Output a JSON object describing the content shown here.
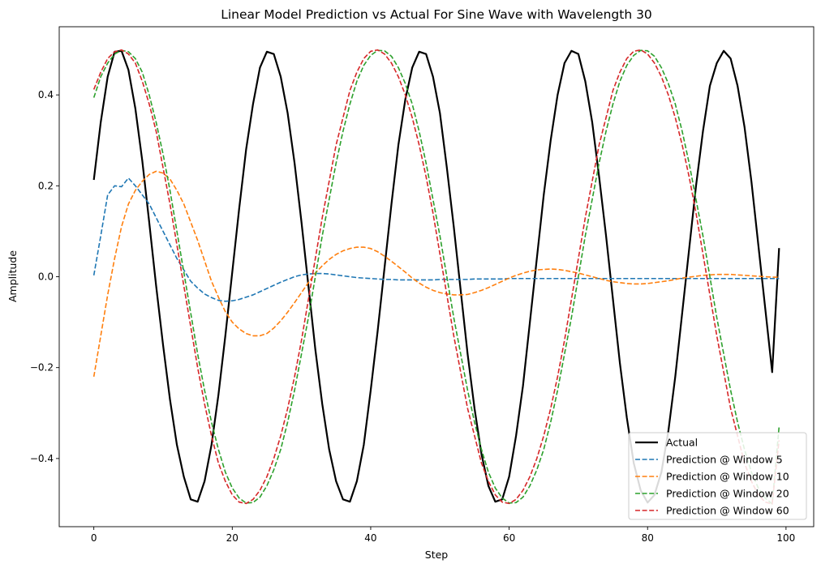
{
  "chart_data": {
    "type": "line",
    "title": "Linear Model Prediction vs Actual For Sine Wave with Wavelength 30",
    "xlabel": "Step",
    "ylabel": "Amplitude",
    "xlim": [
      -5,
      104
    ],
    "ylim": [
      -0.55,
      0.55
    ],
    "xticks": [
      0,
      20,
      40,
      60,
      80,
      100
    ],
    "yticks": [
      -0.4,
      -0.2,
      0.0,
      0.2,
      0.4
    ],
    "xtick_labels": [
      "0",
      "20",
      "40",
      "60",
      "80",
      "100"
    ],
    "ytick_labels": [
      "−0.4",
      "−0.2",
      "0.0",
      "0.2",
      "0.4"
    ],
    "grid": false,
    "legend_position": "lower-right",
    "x": [
      0,
      1,
      2,
      3,
      4,
      5,
      6,
      7,
      8,
      9,
      10,
      11,
      12,
      13,
      14,
      15,
      16,
      17,
      18,
      19,
      20,
      21,
      22,
      23,
      24,
      25,
      26,
      27,
      28,
      29,
      30,
      31,
      32,
      33,
      34,
      35,
      36,
      37,
      38,
      39,
      40,
      41,
      42,
      43,
      44,
      45,
      46,
      47,
      48,
      49,
      50,
      51,
      52,
      53,
      54,
      55,
      56,
      57,
      58,
      59,
      60,
      61,
      62,
      63,
      64,
      65,
      66,
      67,
      68,
      69,
      70,
      71,
      72,
      73,
      74,
      75,
      76,
      77,
      78,
      79,
      80,
      81,
      82,
      83,
      84,
      85,
      86,
      87,
      88,
      89,
      90,
      91,
      92,
      93,
      94,
      95,
      96,
      97,
      98,
      99
    ],
    "series": [
      {
        "name": "Actual",
        "color": "#000000",
        "style": "solid",
        "values": [
          0.213,
          0.34,
          0.44,
          0.495,
          0.497,
          0.455,
          0.37,
          0.255,
          0.12,
          -0.02,
          -0.15,
          -0.27,
          -0.37,
          -0.44,
          -0.49,
          -0.495,
          -0.45,
          -0.37,
          -0.26,
          -0.13,
          0.01,
          0.15,
          0.28,
          0.38,
          0.46,
          0.495,
          0.49,
          0.44,
          0.36,
          0.25,
          0.12,
          -0.02,
          -0.16,
          -0.28,
          -0.38,
          -0.45,
          -0.49,
          -0.495,
          -0.45,
          -0.37,
          -0.25,
          -0.12,
          0.02,
          0.16,
          0.29,
          0.39,
          0.46,
          0.495,
          0.49,
          0.44,
          0.36,
          0.24,
          0.11,
          -0.03,
          -0.17,
          -0.29,
          -0.39,
          -0.46,
          -0.495,
          -0.49,
          -0.44,
          -0.35,
          -0.24,
          -0.1,
          0.04,
          0.18,
          0.3,
          0.4,
          0.47,
          0.497,
          0.49,
          0.43,
          0.34,
          0.22,
          0.09,
          -0.05,
          -0.19,
          -0.31,
          -0.41,
          -0.47,
          -0.497,
          -0.48,
          -0.43,
          -0.34,
          -0.22,
          -0.08,
          0.06,
          0.2,
          0.32,
          0.42,
          0.47,
          0.497,
          0.48,
          0.42,
          0.33,
          0.21,
          0.07,
          -0.07,
          -0.21,
          0.063
        ]
      },
      {
        "name": "Prediction @ Window 5",
        "color": "#1f77b4",
        "style": "dashed",
        "values": [
          0.003,
          0.09,
          0.18,
          0.2,
          0.198,
          0.217,
          0.2,
          0.18,
          0.16,
          0.13,
          0.1,
          0.07,
          0.04,
          0.015,
          -0.01,
          -0.025,
          -0.038,
          -0.046,
          -0.052,
          -0.054,
          -0.053,
          -0.05,
          -0.045,
          -0.04,
          -0.033,
          -0.026,
          -0.019,
          -0.012,
          -0.006,
          0.0,
          0.004,
          0.006,
          0.007,
          0.007,
          0.006,
          0.004,
          0.002,
          0.0,
          -0.002,
          -0.003,
          -0.004,
          -0.005,
          -0.006,
          -0.006,
          -0.007,
          -0.007,
          -0.007,
          -0.007,
          -0.007,
          -0.007,
          -0.006,
          -0.006,
          -0.006,
          -0.006,
          -0.006,
          -0.005,
          -0.005,
          -0.005,
          -0.005,
          -0.005,
          -0.004,
          -0.004,
          -0.004,
          -0.004,
          -0.004,
          -0.004,
          -0.004,
          -0.004,
          -0.004,
          -0.004,
          -0.004,
          -0.004,
          -0.004,
          -0.004,
          -0.004,
          -0.004,
          -0.004,
          -0.004,
          -0.004,
          -0.004,
          -0.004,
          -0.004,
          -0.004,
          -0.004,
          -0.004,
          -0.004,
          -0.004,
          -0.004,
          -0.004,
          -0.004,
          -0.004,
          -0.004,
          -0.004,
          -0.004,
          -0.004,
          -0.004,
          -0.004,
          -0.004,
          -0.004,
          -0.004
        ]
      },
      {
        "name": "Prediction @ Window 10",
        "color": "#ff7f0e",
        "style": "dashed",
        "values": [
          -0.22,
          -0.13,
          -0.04,
          0.04,
          0.11,
          0.16,
          0.19,
          0.21,
          0.225,
          0.232,
          0.228,
          0.215,
          0.19,
          0.16,
          0.12,
          0.08,
          0.035,
          -0.01,
          -0.045,
          -0.077,
          -0.1,
          -0.115,
          -0.125,
          -0.13,
          -0.13,
          -0.125,
          -0.113,
          -0.097,
          -0.078,
          -0.057,
          -0.035,
          -0.013,
          0.008,
          0.024,
          0.038,
          0.049,
          0.057,
          0.062,
          0.065,
          0.065,
          0.062,
          0.055,
          0.045,
          0.034,
          0.022,
          0.01,
          -0.003,
          -0.014,
          -0.023,
          -0.03,
          -0.035,
          -0.038,
          -0.04,
          -0.04,
          -0.039,
          -0.035,
          -0.03,
          -0.024,
          -0.017,
          -0.01,
          -0.003,
          0.003,
          0.008,
          0.012,
          0.015,
          0.016,
          0.017,
          0.016,
          0.014,
          0.011,
          0.008,
          0.004,
          0.0,
          -0.004,
          -0.008,
          -0.011,
          -0.013,
          -0.015,
          -0.016,
          -0.016,
          -0.015,
          -0.013,
          -0.011,
          -0.009,
          -0.006,
          -0.003,
          -0.001,
          0.001,
          0.003,
          0.004,
          0.005,
          0.005,
          0.005,
          0.004,
          0.003,
          0.002,
          0.001,
          0.0,
          -0.001,
          -0.001
        ]
      },
      {
        "name": "Prediction @ Window 20",
        "color": "#2ca02c",
        "style": "dashed",
        "values": [
          0.394,
          0.44,
          0.47,
          0.49,
          0.498,
          0.495,
          0.48,
          0.45,
          0.4,
          0.34,
          0.27,
          0.19,
          0.1,
          0.01,
          -0.08,
          -0.17,
          -0.25,
          -0.32,
          -0.38,
          -0.43,
          -0.465,
          -0.487,
          -0.498,
          -0.497,
          -0.485,
          -0.46,
          -0.425,
          -0.38,
          -0.32,
          -0.25,
          -0.17,
          -0.09,
          0.0,
          0.09,
          0.17,
          0.25,
          0.32,
          0.38,
          0.43,
          0.465,
          0.487,
          0.498,
          0.497,
          0.485,
          0.46,
          0.425,
          0.38,
          0.32,
          0.25,
          0.17,
          0.09,
          0.0,
          -0.09,
          -0.17,
          -0.25,
          -0.32,
          -0.38,
          -0.43,
          -0.465,
          -0.487,
          -0.498,
          -0.497,
          -0.485,
          -0.46,
          -0.425,
          -0.38,
          -0.32,
          -0.25,
          -0.17,
          -0.09,
          0.0,
          0.09,
          0.17,
          0.25,
          0.32,
          0.38,
          0.43,
          0.465,
          0.487,
          0.498,
          0.497,
          0.485,
          0.46,
          0.425,
          0.38,
          0.32,
          0.25,
          0.17,
          0.09,
          0.0,
          -0.09,
          -0.17,
          -0.25,
          -0.32,
          -0.38,
          -0.43,
          -0.465,
          -0.487,
          -0.5,
          -0.33
        ]
      },
      {
        "name": "Prediction @ Window 60",
        "color": "#d62728",
        "style": "dashed",
        "values": [
          0.412,
          0.45,
          0.48,
          0.495,
          0.499,
          0.49,
          0.47,
          0.43,
          0.38,
          0.32,
          0.24,
          0.16,
          0.07,
          -0.02,
          -0.11,
          -0.2,
          -0.28,
          -0.35,
          -0.41,
          -0.45,
          -0.48,
          -0.496,
          -0.499,
          -0.49,
          -0.47,
          -0.44,
          -0.4,
          -0.35,
          -0.29,
          -0.22,
          -0.14,
          -0.05,
          0.04,
          0.13,
          0.21,
          0.29,
          0.35,
          0.41,
          0.45,
          0.48,
          0.496,
          0.499,
          0.49,
          0.47,
          0.44,
          0.4,
          0.35,
          0.29,
          0.22,
          0.14,
          0.05,
          -0.04,
          -0.13,
          -0.21,
          -0.29,
          -0.35,
          -0.41,
          -0.45,
          -0.48,
          -0.496,
          -0.499,
          -0.49,
          -0.47,
          -0.44,
          -0.4,
          -0.35,
          -0.29,
          -0.22,
          -0.14,
          -0.05,
          0.04,
          0.13,
          0.21,
          0.29,
          0.35,
          0.41,
          0.45,
          0.48,
          0.496,
          0.499,
          0.49,
          0.47,
          0.44,
          0.4,
          0.35,
          0.29,
          0.22,
          0.14,
          0.05,
          -0.04,
          -0.13,
          -0.21,
          -0.29,
          -0.35,
          -0.41,
          -0.45,
          -0.48,
          -0.496,
          -0.5,
          -0.36
        ]
      }
    ]
  }
}
